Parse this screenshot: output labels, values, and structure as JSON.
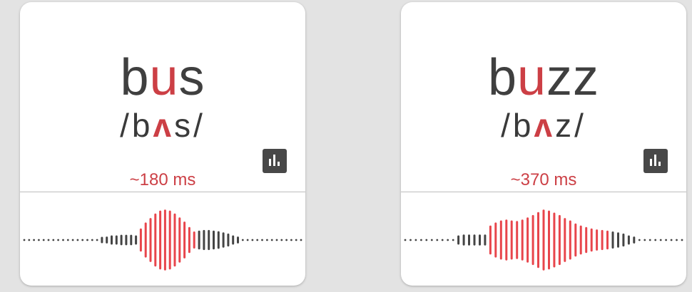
{
  "colors": {
    "highlight": "#cc3f45",
    "text": "#3f3f3f",
    "waveform_neutral": "#444444",
    "waveform_highlight": "#e8454b"
  },
  "cards": [
    {
      "word": {
        "before": "b",
        "highlight": "u",
        "after": "s"
      },
      "ipa": {
        "before": "/b",
        "highlight": "ʌ",
        "after": "s/"
      },
      "duration": "~180 ms",
      "chart_icon": "bar-chart-icon",
      "waveform": {
        "heights": [
          0,
          0,
          0,
          0,
          0,
          0,
          0,
          0,
          0,
          0,
          0,
          0,
          0,
          0,
          0,
          0,
          0.05,
          0.08,
          0.12,
          0.12,
          0.14,
          0.14,
          0.14,
          0.12,
          0.35,
          0.55,
          0.7,
          0.85,
          0.95,
          0.98,
          0.95,
          0.85,
          0.72,
          0.58,
          0.4,
          0.25,
          0.28,
          0.3,
          0.3,
          0.28,
          0.26,
          0.22,
          0.18,
          0.12,
          0.08,
          0,
          0,
          0,
          0,
          0,
          0,
          0,
          0,
          0,
          0,
          0,
          0,
          0
        ],
        "highlight_range": [
          24,
          35
        ]
      }
    },
    {
      "word": {
        "before": "b",
        "highlight": "u",
        "after": "zz"
      },
      "ipa": {
        "before": "/b",
        "highlight": "ʌ",
        "after": "z/"
      },
      "duration": "~370 ms",
      "chart_icon": "bar-chart-icon",
      "waveform": {
        "heights": [
          0,
          0,
          0,
          0,
          0,
          0,
          0,
          0,
          0,
          0,
          0.12,
          0.15,
          0.15,
          0.15,
          0.15,
          0.15,
          0.45,
          0.55,
          0.62,
          0.65,
          0.62,
          0.6,
          0.65,
          0.72,
          0.8,
          0.9,
          0.98,
          0.95,
          0.88,
          0.8,
          0.7,
          0.62,
          0.52,
          0.45,
          0.4,
          0.35,
          0.32,
          0.3,
          0.28,
          0.25,
          0.22,
          0.18,
          0.12,
          0.08,
          0,
          0,
          0,
          0,
          0,
          0,
          0,
          0,
          0
        ],
        "highlight_range": [
          16,
          38
        ]
      }
    }
  ]
}
